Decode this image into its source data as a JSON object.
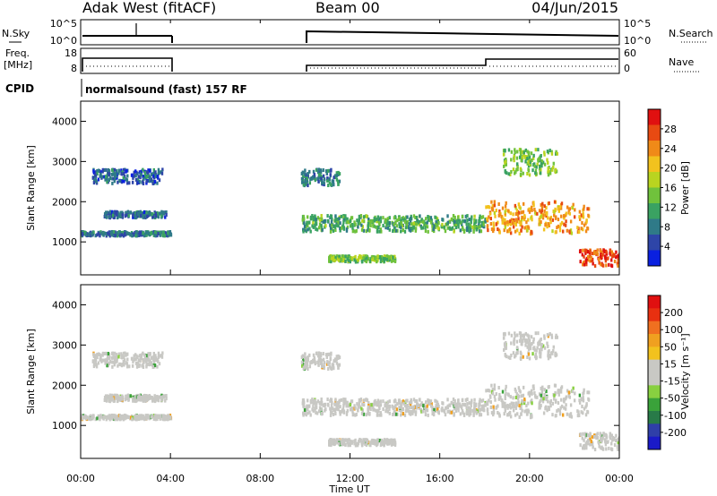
{
  "header": {
    "station": "Adak West (fitACF)",
    "beam": "Beam 00",
    "date": "04/Jun/2015"
  },
  "panels": {
    "nsky": {
      "label": "N.Sky",
      "tick_top": "10^5",
      "tick_bottom": "10^0",
      "right_label": "N.Search",
      "right_tick_top": "10^5",
      "right_tick_bottom": "10^0"
    },
    "freq": {
      "label_line1": "Freq.",
      "label_line2": "[MHz]",
      "tick_top": "18",
      "tick_bottom": "8",
      "right_label": "Nave",
      "right_tick_top": "60",
      "right_tick_bottom": "0"
    },
    "cpid": {
      "label": "CPID",
      "program": "normalsound (fast) 157 RF"
    }
  },
  "colorbars": {
    "power": {
      "label": "Power [dB]",
      "ticks": [
        "4",
        "8",
        "12",
        "16",
        "20",
        "24",
        "28"
      ],
      "colors": [
        "#0a20e0",
        "#2e45a8",
        "#2f7a88",
        "#3aa262",
        "#70c23c",
        "#b9d420",
        "#f2c21e",
        "#f08a18",
        "#e84a12",
        "#e01010"
      ]
    },
    "velocity": {
      "label": "Velocity [m s⁻¹]",
      "ticks": [
        "200",
        "100",
        "50",
        "15",
        "-15",
        "-50",
        "-100",
        "-200"
      ],
      "colors": [
        "#1a1ac8",
        "#2f3fa8",
        "#287a48",
        "#3aa23a",
        "#88d040",
        "#c8c8c4",
        "#c8c8c4",
        "#f2c21e",
        "#f0a020",
        "#f07020",
        "#e83010",
        "#e01010"
      ]
    }
  },
  "range_axis": {
    "label": "Slant Range [km]",
    "ticks": [
      "1000",
      "2000",
      "3000",
      "4000"
    ]
  },
  "time_axis": {
    "label": "Time UT",
    "ticks": [
      "00:00",
      "04:00",
      "08:00",
      "12:00",
      "16:00",
      "20:00",
      "00:00"
    ]
  },
  "chart_data": {
    "type": "heatmap",
    "x_unit": "hours UT",
    "y_unit": "km",
    "xlim": [
      0,
      24
    ],
    "ylim": [
      180,
      4500
    ],
    "data_gap": [
      4.0,
      9.8
    ],
    "power_echo_bands": [
      {
        "start": 0.0,
        "end": 4.0,
        "range": [
          1150,
          1250
        ],
        "power_db": 8
      },
      {
        "start": 0.5,
        "end": 3.6,
        "range": [
          2450,
          2800
        ],
        "power_db": 6
      },
      {
        "start": 1.0,
        "end": 3.8,
        "range": [
          1600,
          1750
        ],
        "power_db": 7
      },
      {
        "start": 9.8,
        "end": 18.0,
        "range": [
          1250,
          1650
        ],
        "power_db": 12
      },
      {
        "start": 9.8,
        "end": 11.5,
        "range": [
          2400,
          2800
        ],
        "power_db": 8
      },
      {
        "start": 11.0,
        "end": 14.0,
        "range": [
          500,
          650
        ],
        "power_db": 14
      },
      {
        "start": 18.0,
        "end": 22.6,
        "range": [
          1200,
          2000
        ],
        "power_db": 22
      },
      {
        "start": 18.8,
        "end": 21.2,
        "range": [
          2650,
          3300
        ],
        "power_db": 14
      },
      {
        "start": 22.2,
        "end": 24.0,
        "range": [
          400,
          800
        ],
        "power_db": 26
      }
    ],
    "velocity_note": "echoes predominantly low velocity between -15 and 15 m/s"
  }
}
